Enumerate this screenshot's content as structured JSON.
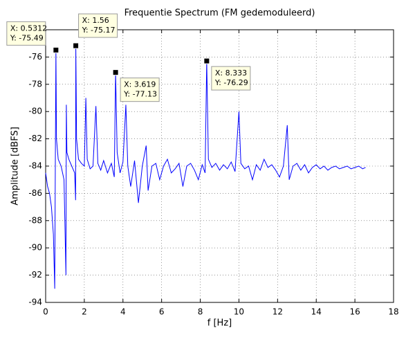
{
  "chart_data": {
    "type": "line",
    "title": "Frequentie Spectrum (FM gedemoduleerd)",
    "x_label": "f [Hz]",
    "y_label": "Amplitude [dBFS]",
    "xlim": [
      0,
      18
    ],
    "xticks": [
      0,
      2,
      4,
      6,
      8,
      10,
      12,
      14,
      16,
      18
    ],
    "ylim": [
      -94,
      -74
    ],
    "yticks": [
      -94,
      -92,
      -90,
      -88,
      -86,
      -84,
      -82,
      -80,
      -78,
      -76
    ],
    "grid": true,
    "series": [
      {
        "color": "#0000ff",
        "x": [
          0,
          0.1,
          0.2,
          0.3,
          0.4,
          0.47,
          0.5,
          0.5312,
          0.56,
          0.65,
          0.8,
          0.95,
          1.05,
          1.07,
          1.1,
          1.2,
          1.35,
          1.5,
          1.55,
          1.56,
          1.6,
          1.7,
          1.85,
          2.0,
          2.08,
          2.15,
          2.3,
          2.45,
          2.6,
          2.7,
          2.85,
          3.0,
          3.2,
          3.4,
          3.55,
          3.619,
          3.7,
          3.85,
          4.0,
          4.15,
          4.25,
          4.4,
          4.6,
          4.8,
          5.0,
          5.2,
          5.3,
          5.5,
          5.7,
          5.9,
          6.1,
          6.3,
          6.5,
          6.7,
          6.9,
          7.1,
          7.3,
          7.5,
          7.7,
          7.9,
          8.1,
          8.25,
          8.333,
          8.42,
          8.6,
          8.8,
          9.0,
          9.2,
          9.4,
          9.6,
          9.8,
          10.0,
          10.1,
          10.3,
          10.5,
          10.7,
          10.9,
          11.1,
          11.3,
          11.5,
          11.7,
          11.9,
          12.1,
          12.3,
          12.5,
          12.6,
          12.8,
          13.0,
          13.2,
          13.4,
          13.6,
          13.8,
          14.0,
          14.2,
          14.4,
          14.6,
          14.8,
          15.0,
          15.2,
          15.4,
          15.6,
          15.8,
          16.0,
          16.2,
          16.4,
          16.55
        ],
        "values": [
          -84.5,
          -85.5,
          -86,
          -87,
          -89,
          -93,
          -84,
          -75.49,
          -82,
          -83.5,
          -84,
          -85,
          -92,
          -79.5,
          -83,
          -83.5,
          -84,
          -84.5,
          -86.5,
          -75.17,
          -82,
          -83.5,
          -83.8,
          -84,
          -79,
          -83.5,
          -84.2,
          -84,
          -79.6,
          -83.8,
          -84.3,
          -83.6,
          -84.5,
          -83.8,
          -84.8,
          -77.13,
          -83,
          -84.5,
          -83.7,
          -79.5,
          -84,
          -85.5,
          -83.6,
          -86.7,
          -84,
          -82.5,
          -85.8,
          -84,
          -83.8,
          -85,
          -84,
          -83.5,
          -84.5,
          -84.2,
          -83.8,
          -85.5,
          -84,
          -83.8,
          -84.3,
          -85,
          -83.9,
          -84.5,
          -76.29,
          -83.5,
          -84.1,
          -83.8,
          -84.3,
          -83.9,
          -84.2,
          -83.7,
          -84.4,
          -80,
          -83.8,
          -84.2,
          -84,
          -85,
          -83.9,
          -84.3,
          -83.5,
          -84.1,
          -83.9,
          -84.3,
          -84.8,
          -84,
          -81,
          -85,
          -84,
          -83.8,
          -84.3,
          -83.9,
          -84.5,
          -84.1,
          -83.9,
          -84.2,
          -84,
          -84.3,
          -84.1,
          -84,
          -84.2,
          -84.1,
          -84,
          -84.2,
          -84.1,
          -84,
          -84.2,
          -84.1
        ]
      }
    ],
    "datatips": [
      {
        "x": 0.5312,
        "y": -75.49,
        "lines": [
          "X: 0.5312",
          "Y: -75.49"
        ]
      },
      {
        "x": 1.56,
        "y": -75.17,
        "lines": [
          "X: 1.56",
          "Y: -75.17"
        ]
      },
      {
        "x": 3.619,
        "y": -77.13,
        "lines": [
          "X: 3.619",
          "Y: -77.13"
        ]
      },
      {
        "x": 8.333,
        "y": -76.29,
        "lines": [
          "X: 8.333",
          "Y: -76.29"
        ]
      }
    ]
  }
}
